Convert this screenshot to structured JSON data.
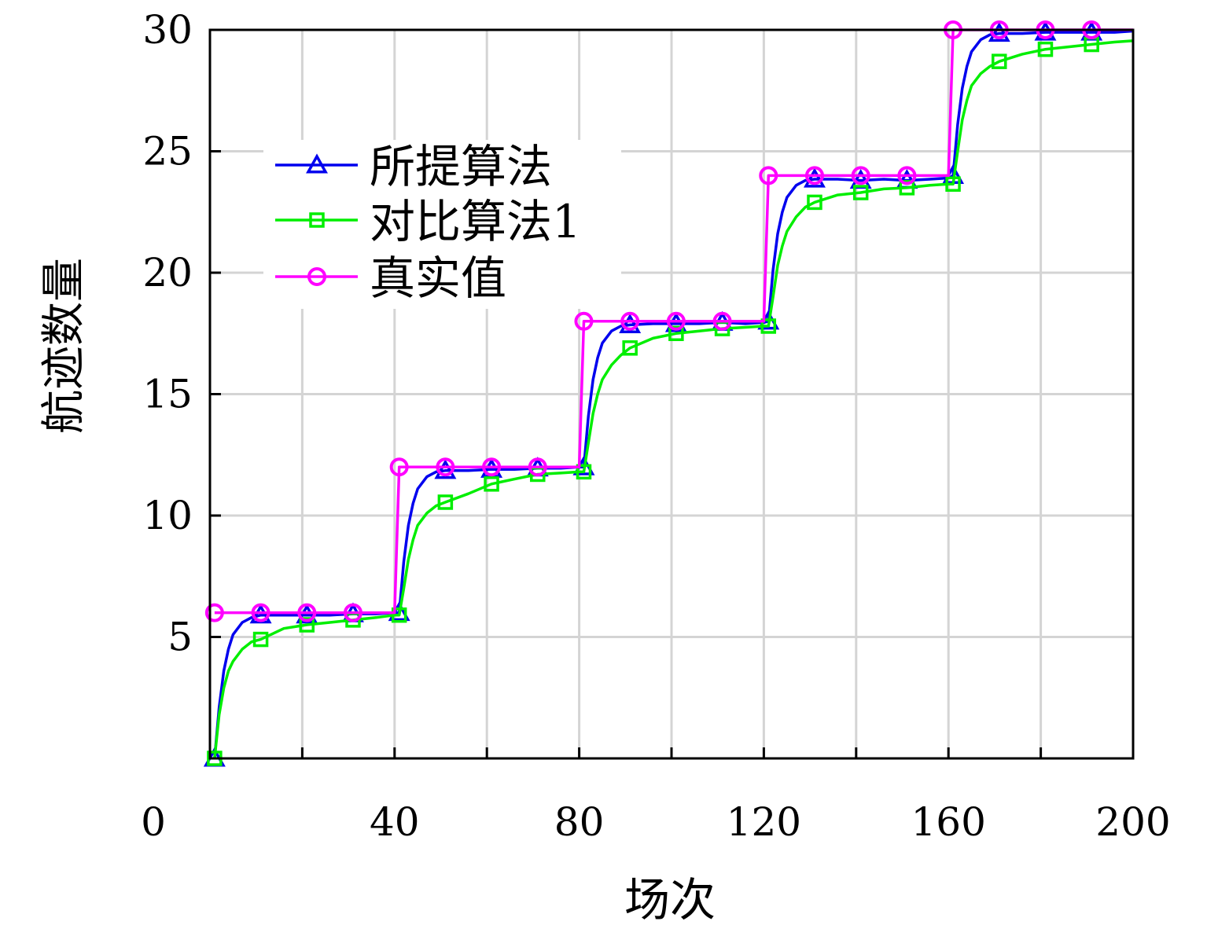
{
  "chart_data": {
    "type": "line",
    "title": "",
    "xlabel": "场次",
    "ylabel": "航迹数量",
    "xlim": [
      0,
      200
    ],
    "ylim": [
      0,
      30
    ],
    "xticks": [
      0,
      40,
      80,
      120,
      160,
      200
    ],
    "xtick_labels": [
      "0",
      "40",
      "80",
      "120",
      "160",
      "200"
    ],
    "yticks": [
      5,
      10,
      15,
      20,
      25,
      30
    ],
    "ytick_labels": [
      "5",
      "10",
      "15",
      "20",
      "25",
      "30"
    ],
    "grid": true,
    "legend_position": "top-left",
    "x": [
      1,
      2,
      3,
      4,
      5,
      7,
      9,
      11,
      16,
      21,
      26,
      31,
      36,
      40,
      41,
      42,
      43,
      44,
      45,
      47,
      49,
      51,
      56,
      61,
      66,
      71,
      76,
      80,
      81,
      82,
      83,
      84,
      85,
      87,
      89,
      91,
      96,
      101,
      106,
      111,
      116,
      120,
      121,
      122,
      123,
      124,
      125,
      127,
      129,
      131,
      136,
      141,
      146,
      151,
      156,
      160,
      161,
      162,
      163,
      164,
      165,
      167,
      169,
      171,
      176,
      181,
      186,
      191,
      196,
      200
    ],
    "marker_x": [
      1,
      11,
      21,
      31,
      41,
      51,
      61,
      71,
      81,
      91,
      101,
      111,
      121,
      131,
      141,
      151,
      161,
      171,
      181,
      191
    ],
    "series": [
      {
        "name": "所提算法",
        "color": "#0000ee",
        "marker": "triangle",
        "values": [
          0,
          2.1,
          3.6,
          4.5,
          5.1,
          5.6,
          5.8,
          5.9,
          5.9,
          5.9,
          5.9,
          5.95,
          5.95,
          6.0,
          6.0,
          8.1,
          9.6,
          10.5,
          11.1,
          11.6,
          11.8,
          11.85,
          11.85,
          11.9,
          11.9,
          11.95,
          11.95,
          12.0,
          12.0,
          14.1,
          15.6,
          16.5,
          17.1,
          17.6,
          17.8,
          17.85,
          17.9,
          17.9,
          17.9,
          17.95,
          17.9,
          17.95,
          18.0,
          20.1,
          21.6,
          22.5,
          23.1,
          23.6,
          23.8,
          23.85,
          23.85,
          23.8,
          23.85,
          23.8,
          23.85,
          23.9,
          24.0,
          26.1,
          27.6,
          28.5,
          29.1,
          29.6,
          29.8,
          29.85,
          29.85,
          29.9,
          29.9,
          29.9,
          29.9,
          29.95
        ]
      },
      {
        "name": "对比算法1",
        "color": "#00ee00",
        "marker": "square",
        "values": [
          0,
          1.8,
          2.9,
          3.6,
          4.0,
          4.5,
          4.8,
          4.9,
          5.35,
          5.5,
          5.6,
          5.7,
          5.8,
          5.9,
          5.9,
          7.0,
          8.2,
          9.0,
          9.6,
          10.1,
          10.4,
          10.55,
          10.9,
          11.3,
          11.5,
          11.7,
          11.75,
          11.8,
          11.8,
          13.0,
          14.2,
          15.0,
          15.6,
          16.2,
          16.6,
          16.9,
          17.3,
          17.5,
          17.6,
          17.7,
          17.75,
          17.8,
          17.8,
          19.0,
          20.3,
          21.1,
          21.7,
          22.3,
          22.7,
          22.9,
          23.2,
          23.3,
          23.45,
          23.5,
          23.6,
          23.65,
          23.65,
          25.0,
          26.3,
          27.1,
          27.7,
          28.2,
          28.5,
          28.7,
          29.0,
          29.2,
          29.3,
          29.4,
          29.5,
          29.55
        ]
      },
      {
        "name": "真实值",
        "color": "#ff00ff",
        "marker": "circle",
        "values": [
          6,
          6,
          6,
          6,
          6,
          6,
          6,
          6,
          6,
          6,
          6,
          6,
          6,
          6,
          12,
          12,
          12,
          12,
          12,
          12,
          12,
          12,
          12,
          12,
          12,
          12,
          12,
          12,
          18,
          18,
          18,
          18,
          18,
          18,
          18,
          18,
          18,
          18,
          18,
          18,
          18,
          18,
          24,
          24,
          24,
          24,
          24,
          24,
          24,
          24,
          24,
          24,
          24,
          24,
          24,
          24,
          30,
          30,
          30,
          30,
          30,
          30,
          30,
          30,
          30,
          30,
          30,
          30,
          30,
          30
        ]
      }
    ]
  }
}
